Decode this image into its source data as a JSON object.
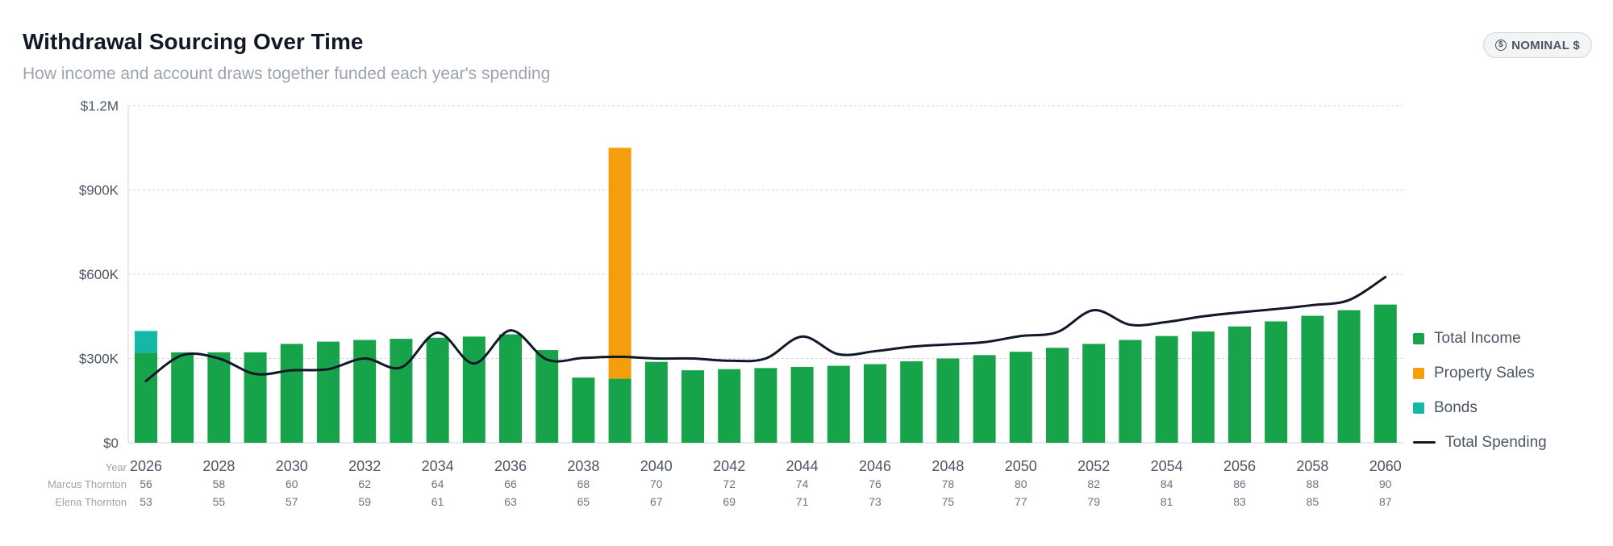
{
  "header": {
    "title": "Withdrawal Sourcing Over Time",
    "subtitle": "How income and account draws together funded each year's spending",
    "mode_badge": "NOMINAL $",
    "mode_icon": "dollar-circle-icon"
  },
  "chart_data": {
    "type": "bar",
    "stacked": true,
    "x": [
      2026,
      2027,
      2028,
      2029,
      2030,
      2031,
      2032,
      2033,
      2034,
      2035,
      2036,
      2037,
      2038,
      2039,
      2040,
      2041,
      2042,
      2043,
      2044,
      2045,
      2046,
      2047,
      2048,
      2049,
      2050,
      2051,
      2052,
      2053,
      2054,
      2055,
      2056,
      2057,
      2058,
      2059,
      2060
    ],
    "ylim": [
      0,
      1200000
    ],
    "y_ticks": [
      0,
      300000,
      600000,
      900000,
      1200000
    ],
    "y_tick_labels": [
      "$0",
      "$300K",
      "$600K",
      "$900K",
      "$1.2M"
    ],
    "grid": true,
    "legend_position": "right",
    "series": [
      {
        "name": "Total Income",
        "kind": "bar",
        "color": "#16a34a",
        "values": [
          320000,
          322000,
          322000,
          322000,
          352000,
          360000,
          366000,
          370000,
          374000,
          378000,
          386000,
          330000,
          232000,
          228000,
          288000,
          258000,
          262000,
          266000,
          270000,
          274000,
          280000,
          290000,
          300000,
          312000,
          324000,
          338000,
          352000,
          366000,
          380000,
          396000,
          414000,
          432000,
          452000,
          472000,
          492000
        ]
      },
      {
        "name": "Property Sales",
        "kind": "bar",
        "color": "#f59e0b",
        "values": [
          0,
          0,
          0,
          0,
          0,
          0,
          0,
          0,
          0,
          0,
          0,
          0,
          0,
          822000,
          0,
          0,
          0,
          0,
          0,
          0,
          0,
          0,
          0,
          0,
          0,
          0,
          0,
          0,
          0,
          0,
          0,
          0,
          0,
          0,
          0
        ]
      },
      {
        "name": "Bonds",
        "kind": "bar",
        "color": "#14b8a6",
        "values": [
          78000,
          0,
          0,
          0,
          0,
          0,
          0,
          0,
          0,
          0,
          0,
          0,
          0,
          0,
          0,
          0,
          0,
          0,
          0,
          0,
          0,
          0,
          0,
          0,
          0,
          0,
          0,
          0,
          0,
          0,
          0,
          0,
          0,
          0,
          0
        ]
      },
      {
        "name": "Total Spending",
        "kind": "line",
        "color": "#111827",
        "values": [
          220000,
          312000,
          300000,
          245000,
          258000,
          262000,
          300000,
          268000,
          392000,
          282000,
          400000,
          296000,
          302000,
          306000,
          300000,
          300000,
          292000,
          300000,
          378000,
          315000,
          326000,
          342000,
          350000,
          358000,
          380000,
          394000,
          472000,
          420000,
          430000,
          450000,
          464000,
          476000,
          490000,
          508000,
          590000
        ]
      }
    ],
    "xaxis_rows": [
      {
        "label": "Year",
        "values": [
          "2026",
          "2028",
          "2030",
          "2032",
          "2034",
          "2036",
          "2038",
          "2040",
          "2042",
          "2044",
          "2046",
          "2048",
          "2050",
          "2052",
          "2054",
          "2056",
          "2058",
          "2060"
        ]
      },
      {
        "label": "Marcus Thornton",
        "values": [
          "56",
          "58",
          "60",
          "62",
          "64",
          "66",
          "68",
          "70",
          "72",
          "74",
          "76",
          "78",
          "80",
          "82",
          "84",
          "86",
          "88",
          "90"
        ]
      },
      {
        "label": "Elena Thornton",
        "values": [
          "53",
          "55",
          "57",
          "59",
          "61",
          "63",
          "65",
          "67",
          "69",
          "71",
          "73",
          "75",
          "77",
          "79",
          "81",
          "83",
          "85",
          "87"
        ]
      }
    ]
  }
}
